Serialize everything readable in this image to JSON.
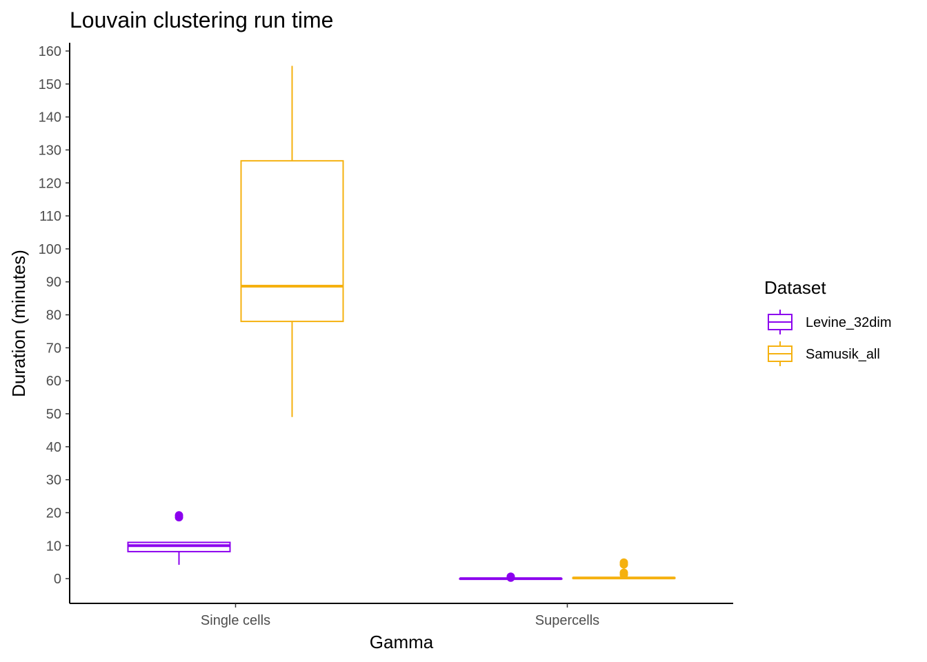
{
  "chart_data": {
    "type": "boxplot",
    "title": "Louvain clustering run time",
    "xlabel": "Gamma",
    "ylabel": "Duration (minutes)",
    "categories": [
      "Single cells",
      "Supercells"
    ],
    "ylim": [
      -7.5,
      162.5
    ],
    "yticks": [
      0,
      10,
      20,
      30,
      40,
      50,
      60,
      70,
      80,
      90,
      100,
      110,
      120,
      130,
      140,
      150,
      160
    ],
    "grid": false,
    "legend": {
      "title": "Dataset",
      "position": "right"
    },
    "series": [
      {
        "name": "Levine_32dim",
        "color": "#8B00EE",
        "boxes": [
          {
            "category": "Single cells",
            "min": 4.2,
            "q1": 8.2,
            "median": 10.0,
            "q3": 11.0,
            "max": 11.0,
            "outliers": [
              18.6,
              19.2
            ]
          },
          {
            "category": "Supercells",
            "min": 0.0,
            "q1": 0.0,
            "median": 0.0,
            "q3": 0.0,
            "max": 0.1,
            "outliers": [
              0.3,
              0.6
            ]
          }
        ]
      },
      {
        "name": "Samusik_all",
        "color": "#F5B10F",
        "boxes": [
          {
            "category": "Single cells",
            "min": 49.0,
            "q1": 78.0,
            "median": 88.7,
            "q3": 126.7,
            "max": 155.5,
            "outliers": []
          },
          {
            "category": "Supercells",
            "min": 0.1,
            "q1": 0.1,
            "median": 0.2,
            "q3": 0.3,
            "max": 0.4,
            "outliers": [
              1.2,
              1.8,
              4.3,
              4.9
            ]
          }
        ]
      }
    ]
  }
}
